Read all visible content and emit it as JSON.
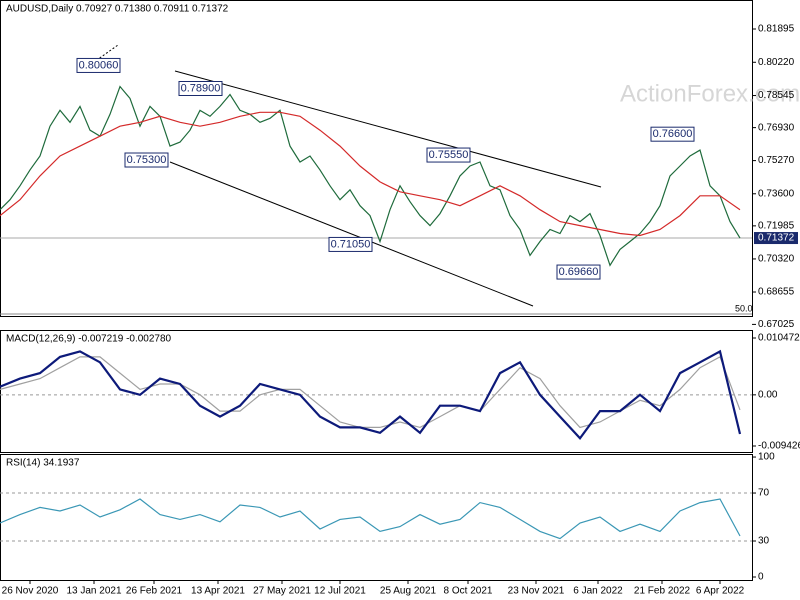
{
  "chart_data": [
    {
      "type": "line",
      "title": "AUDUSD,Daily 0.70927 0.71380 0.70911 0.71372",
      "watermark": "ActionForex.com",
      "level_label": "50.0",
      "current_price": 0.71372,
      "ylim": [
        0.67498,
        0.83254
      ],
      "yticks": [
        0.81895,
        {
          "value": 0.8022,
          "label": "0.80220"
        },
        0.78545,
        {
          "value": 0.7693,
          "label": "0.76930"
        },
        {
          "value": 0.7527,
          "label": "0.75270"
        },
        {
          "value": 0.736,
          "label": "0.73600"
        },
        0.71985,
        {
          "value": 0.7032,
          "label": "0.70320"
        },
        0.68655,
        0.67025
      ],
      "xlim": [
        0,
        376
      ],
      "xticks": [
        {
          "value": 15,
          "label": "26 Nov 2020"
        },
        {
          "value": 47,
          "label": "13 Jan 2021"
        },
        {
          "value": 77,
          "label": "26 Feb 2021"
        },
        {
          "value": 109,
          "label": "13 Apr 2021"
        },
        {
          "value": 141,
          "label": "27 May 2021"
        },
        {
          "value": 170,
          "label": "12 Jul 2021"
        },
        {
          "value": 204,
          "label": "25 Aug 2021"
        },
        {
          "value": 234,
          "label": "8 Oct 2021"
        },
        {
          "value": 268,
          "label": "23 Nov 2021"
        },
        {
          "value": 299,
          "label": "6 Jan 2022"
        },
        {
          "value": 331,
          "label": "21 Feb 2022"
        },
        {
          "value": 360,
          "label": "6 Apr 2022"
        }
      ],
      "annotations": [
        {
          "x": 60,
          "value": 0.8006,
          "label": "0.80060"
        },
        {
          "x": 111,
          "value": 0.789,
          "label": "0.78900"
        },
        {
          "x": 84,
          "value": 0.753,
          "label": "0.75300"
        },
        {
          "x": 186,
          "value": 0.7105,
          "label": "0.71050"
        },
        {
          "x": 235,
          "value": 0.7555,
          "label": "0.75550"
        },
        {
          "x": 300,
          "value": 0.6966,
          "label": "0.69660"
        },
        {
          "x": 347,
          "value": 0.766,
          "label": "0.76600"
        }
      ],
      "series": [
        {
          "color": "#1f6b3c",
          "x": [
            0,
            5,
            10,
            15,
            20,
            25,
            30,
            35,
            40,
            45,
            50,
            55,
            60,
            65,
            70,
            75,
            80,
            85,
            90,
            95,
            100,
            105,
            110,
            115,
            120,
            125,
            130,
            135,
            140,
            145,
            150,
            155,
            160,
            165,
            170,
            175,
            180,
            185,
            190,
            195,
            200,
            205,
            210,
            215,
            220,
            225,
            230,
            235,
            240,
            245,
            250,
            255,
            260,
            265,
            270,
            275,
            280,
            285,
            290,
            295,
            300,
            305,
            310,
            315,
            320,
            325,
            330,
            335,
            340,
            345,
            350,
            355,
            360,
            365,
            370
          ],
          "values": [
            0.728,
            0.733,
            0.74,
            0.748,
            0.755,
            0.77,
            0.778,
            0.772,
            0.78,
            0.768,
            0.765,
            0.776,
            0.79,
            0.784,
            0.77,
            0.78,
            0.775,
            0.76,
            0.762,
            0.768,
            0.778,
            0.775,
            0.78,
            0.786,
            0.778,
            0.776,
            0.772,
            0.774,
            0.778,
            0.76,
            0.752,
            0.755,
            0.748,
            0.74,
            0.733,
            0.738,
            0.73,
            0.725,
            0.712,
            0.728,
            0.74,
            0.732,
            0.725,
            0.72,
            0.726,
            0.735,
            0.745,
            0.75,
            0.752,
            0.74,
            0.738,
            0.725,
            0.718,
            0.705,
            0.712,
            0.718,
            0.716,
            0.725,
            0.722,
            0.726,
            0.715,
            0.7,
            0.708,
            0.712,
            0.716,
            0.722,
            0.73,
            0.745,
            0.75,
            0.755,
            0.758,
            0.74,
            0.735,
            0.722,
            0.7137
          ]
        },
        {
          "color": "#d42a2a",
          "x": [
            0,
            10,
            20,
            30,
            40,
            50,
            60,
            70,
            80,
            90,
            100,
            110,
            120,
            130,
            140,
            150,
            160,
            170,
            180,
            190,
            200,
            210,
            220,
            230,
            240,
            250,
            260,
            270,
            280,
            290,
            300,
            310,
            320,
            330,
            340,
            350,
            360,
            370
          ],
          "values": [
            0.725,
            0.733,
            0.745,
            0.755,
            0.76,
            0.765,
            0.77,
            0.772,
            0.775,
            0.772,
            0.77,
            0.772,
            0.775,
            0.777,
            0.777,
            0.775,
            0.768,
            0.76,
            0.75,
            0.742,
            0.737,
            0.735,
            0.733,
            0.73,
            0.735,
            0.74,
            0.735,
            0.728,
            0.722,
            0.72,
            0.718,
            0.716,
            0.715,
            0.718,
            0.725,
            0.735,
            0.735,
            0.728
          ]
        }
      ]
    },
    {
      "type": "line",
      "title": "MACD(12,26,9) -0.007219 -0.002780",
      "ylim": [
        -0.01053,
        0.01158
      ],
      "yticks": [
        0.010472,
        {
          "value": 0,
          "label": "0.00"
        },
        -0.009426
      ],
      "xlim": [
        0,
        376
      ],
      "series": [
        {
          "color": "#a0a0a0",
          "x": [
            0,
            10,
            20,
            30,
            40,
            50,
            60,
            70,
            80,
            90,
            100,
            110,
            120,
            130,
            140,
            150,
            160,
            170,
            180,
            190,
            200,
            210,
            220,
            230,
            240,
            250,
            260,
            270,
            280,
            290,
            300,
            310,
            320,
            330,
            340,
            350,
            360,
            370
          ],
          "values": [
            0.001,
            0.002,
            0.003,
            0.005,
            0.007,
            0.007,
            0.004,
            0.001,
            0.002,
            0.002,
            0,
            -0.003,
            -0.003,
            0,
            0.001,
            0.001,
            -0.002,
            -0.005,
            -0.006,
            -0.006,
            -0.005,
            -0.006,
            -0.004,
            -0.002,
            -0.003,
            0.001,
            0.005,
            0.003,
            -0.002,
            -0.006,
            -0.005,
            -0.003,
            -0.001,
            -0.002,
            0.001,
            0.005,
            0.007,
            -0.00278
          ]
        },
        {
          "color": "#0d1a7a",
          "x": [
            0,
            10,
            20,
            30,
            40,
            50,
            60,
            70,
            80,
            90,
            100,
            110,
            120,
            130,
            140,
            150,
            160,
            170,
            180,
            190,
            200,
            210,
            220,
            230,
            240,
            250,
            260,
            270,
            280,
            290,
            300,
            310,
            320,
            330,
            340,
            350,
            360,
            370
          ],
          "values": [
            0.0015,
            0.003,
            0.004,
            0.007,
            0.008,
            0.006,
            0.001,
            0,
            0.003,
            0.002,
            -0.002,
            -0.004,
            -0.002,
            0.002,
            0.001,
            0,
            -0.004,
            -0.006,
            -0.006,
            -0.007,
            -0.004,
            -0.007,
            -0.002,
            -0.002,
            -0.003,
            0.004,
            0.006,
            0,
            -0.004,
            -0.008,
            -0.003,
            -0.003,
            0,
            -0.003,
            0.004,
            0.006,
            0.008,
            -0.007219
          ]
        }
      ]
    },
    {
      "type": "line",
      "title": "RSI(14) 34.1937",
      "ylim": [
        -2.5,
        101.7
      ],
      "yticks": [
        100,
        70,
        30,
        0
      ],
      "levels": [
        70,
        30
      ],
      "xlim": [
        0,
        376
      ],
      "series": [
        {
          "color": "#3a97b5",
          "x": [
            0,
            10,
            20,
            30,
            40,
            50,
            60,
            70,
            80,
            90,
            100,
            110,
            120,
            130,
            140,
            150,
            160,
            170,
            180,
            190,
            200,
            210,
            220,
            230,
            240,
            250,
            260,
            270,
            280,
            290,
            300,
            310,
            320,
            330,
            340,
            350,
            360,
            370
          ],
          "values": [
            45,
            52,
            58,
            55,
            60,
            50,
            56,
            65,
            52,
            48,
            52,
            46,
            60,
            58,
            50,
            55,
            40,
            48,
            50,
            38,
            42,
            52,
            44,
            48,
            62,
            58,
            48,
            38,
            32,
            45,
            50,
            38,
            44,
            38,
            55,
            62,
            65,
            34.19
          ]
        }
      ]
    }
  ]
}
